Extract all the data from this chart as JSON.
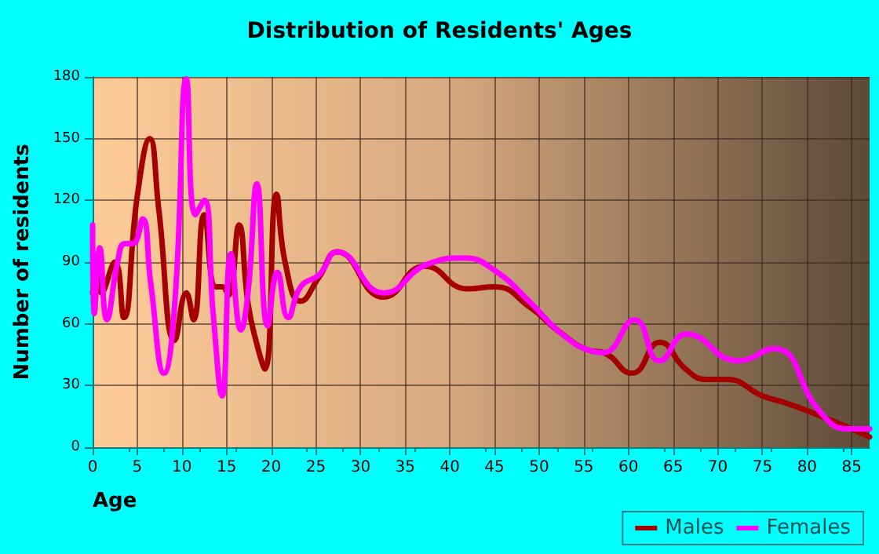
{
  "chart_data": {
    "type": "line",
    "title": "Distribution of Residents' Ages",
    "xlabel": "Age",
    "ylabel": "Number of residents",
    "xlim": [
      0,
      87
    ],
    "xticks": [
      0,
      5,
      10,
      15,
      20,
      25,
      30,
      35,
      40,
      45,
      50,
      55,
      60,
      65,
      70,
      75,
      80,
      85
    ],
    "ylim": [
      0,
      180
    ],
    "yticks": [
      0,
      30,
      60,
      90,
      120,
      150,
      180
    ],
    "grid": true,
    "legend": "bottom right",
    "marker": "none",
    "line_style": "solid",
    "series": [
      {
        "name": "Males",
        "color": "#a50000",
        "x": [
          0,
          0.6,
          1.0,
          2.5,
          3.5,
          5,
          6.4,
          7.4,
          9.2,
          10.5,
          11.3,
          12.5,
          13.8,
          14.5,
          15.2,
          16.4,
          17.4,
          18.4,
          19.3,
          20.6,
          21.6,
          23.3,
          25.4,
          27.4,
          32.6,
          37.2,
          42,
          45,
          49,
          52.3,
          55.7,
          57.2,
          60.4,
          63.5,
          66.4,
          68.8,
          71,
          75,
          78,
          82.2,
          87
        ],
        "values": [
          75,
          89,
          75,
          90,
          63,
          122,
          150,
          116,
          52,
          75,
          62,
          113,
          78,
          78,
          74,
          108,
          70,
          50,
          38,
          123,
          89,
          71,
          83,
          95,
          73,
          88,
          77,
          78,
          68,
          56,
          47,
          46,
          36,
          51,
          38,
          33,
          33,
          25,
          21,
          14,
          5
        ]
      },
      {
        "name": "Females",
        "color": "#ff00ff",
        "x": [
          0,
          0.2,
          0.8,
          1.6,
          2.8,
          3.6,
          4.5,
          5.6,
          6.5,
          8,
          9.2,
          10.5,
          11.5,
          12.5,
          13.5,
          14.5,
          15.5,
          16.6,
          17.4,
          18.4,
          19.6,
          20.7,
          21.9,
          23.3,
          25.4,
          27.4,
          32.6,
          37.5,
          41.6,
          45,
          49.1,
          52.3,
          55.7,
          57.2,
          60.7,
          63.5,
          66.5,
          72.3,
          76.3,
          81.5,
          84.5,
          87
        ],
        "values": [
          108,
          65,
          97,
          62,
          90,
          99,
          99,
          111,
          80,
          36,
          70,
          179,
          113,
          120,
          65,
          25,
          94,
          57,
          75,
          128,
          59,
          85,
          63,
          78,
          84,
          95,
          75,
          89,
          92,
          86,
          70,
          56,
          47,
          46,
          62,
          42,
          55,
          42,
          48,
          17,
          9,
          9
        ]
      }
    ]
  }
}
